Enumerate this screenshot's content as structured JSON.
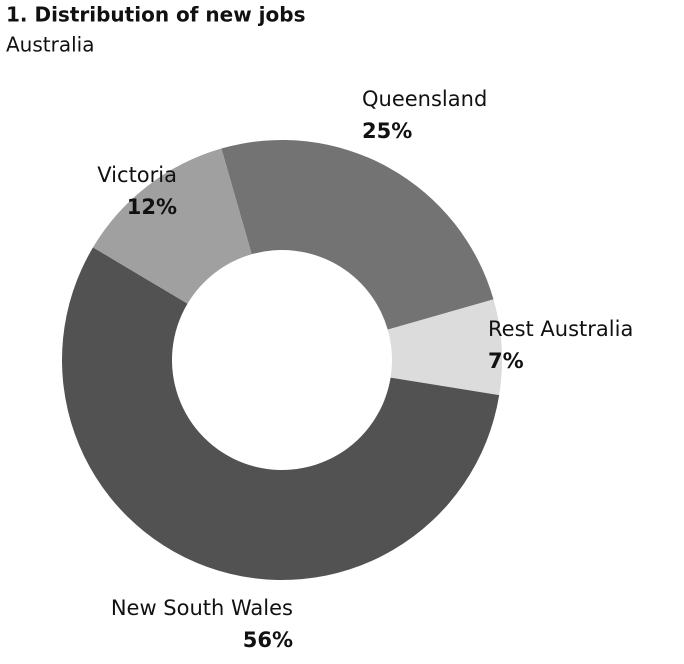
{
  "chart_data": {
    "type": "donut",
    "title": "1. Distribution of new jobs",
    "subtitle": "Australia",
    "categories": [
      "Queensland",
      "Rest Australia",
      "New South Wales",
      "Victoria"
    ],
    "values": [
      25,
      7,
      56,
      12
    ],
    "value_labels": [
      "25%",
      "7%",
      "56%",
      "12%"
    ],
    "colors": [
      "#737373",
      "#dcdcdc",
      "#525252",
      "#a0a0a0"
    ]
  }
}
